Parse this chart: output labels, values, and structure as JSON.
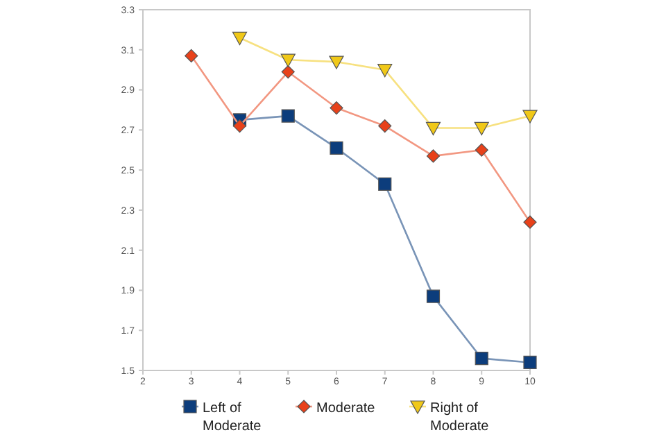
{
  "chart_data": {
    "type": "line",
    "xlim": [
      2,
      10
    ],
    "ylim": [
      1.5,
      3.3
    ],
    "xticks": [
      2,
      3,
      4,
      5,
      6,
      7,
      8,
      9,
      10
    ],
    "yticks": [
      1.5,
      1.7,
      1.9,
      2.1,
      2.3,
      2.5,
      2.7,
      2.9,
      3.1,
      3.3
    ],
    "grid": false,
    "legend": "bottom",
    "series": [
      {
        "name": "Left of Moderate",
        "color": "#0c3d7c",
        "marker": "square",
        "x": [
          4,
          5,
          6,
          7,
          8,
          9,
          10
        ],
        "values": [
          2.75,
          2.77,
          2.61,
          2.43,
          1.87,
          1.56,
          1.54
        ]
      },
      {
        "name": "Moderate",
        "color": "#e8411a",
        "marker": "diamond",
        "x": [
          3,
          4,
          5,
          6,
          7,
          8,
          9,
          10
        ],
        "values": [
          3.07,
          2.72,
          2.99,
          2.81,
          2.72,
          2.57,
          2.6,
          2.24
        ]
      },
      {
        "name": "Right of Moderate",
        "color": "#f0c818",
        "marker": "triangle-down",
        "x": [
          4,
          5,
          6,
          7,
          8,
          9,
          10
        ],
        "values": [
          3.16,
          3.05,
          3.04,
          3.0,
          2.71,
          2.71,
          2.77
        ]
      }
    ]
  }
}
